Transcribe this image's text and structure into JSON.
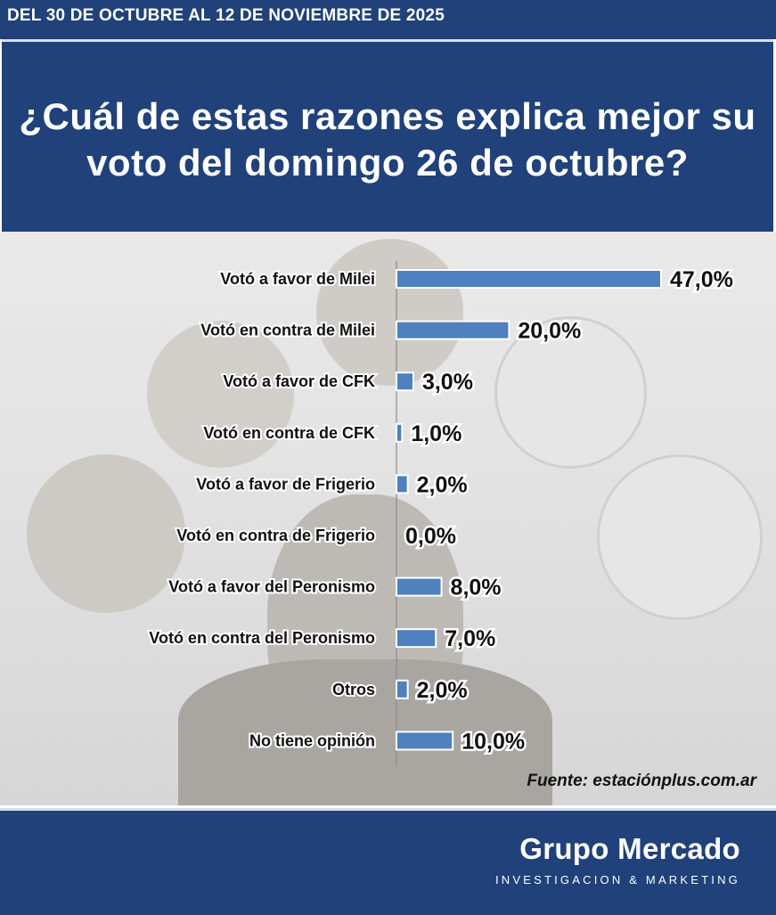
{
  "header": {
    "date_range": "DEL 30 DE OCTUBRE AL 12 DE NOVIEMBRE  DE 2025"
  },
  "title": "¿Cuál de estas razones explica mejor su voto del domingo 26 de octubre?",
  "chart_data": {
    "type": "bar",
    "orientation": "horizontal",
    "categories": [
      "Votó a favor de Milei",
      "Votó en contra de Milei",
      "Votó a favor de CFK",
      "Votó en contra de CFK",
      "Votó a favor de Frigerio",
      "Votó en contra de Frigerio",
      "Votó a favor del Peronismo",
      "Votó en contra del Peronismo",
      "Otros",
      "No tiene opinión"
    ],
    "values": [
      47.0,
      20.0,
      3.0,
      1.0,
      2.0,
      0.0,
      8.0,
      7.0,
      2.0,
      10.0
    ],
    "value_labels": [
      "47,0%",
      "20,0%",
      "3,0%",
      "1,0%",
      "2,0%",
      "0,0%",
      "8,0%",
      "7,0%",
      "2,0%",
      "10,0%"
    ],
    "unit": "%",
    "xlim": [
      0,
      50
    ],
    "bar_color": "#4e81bd",
    "grid": false,
    "legend": "none"
  },
  "source": "Fuente: estaciónplus.com.ar",
  "footer": {
    "brand": "Grupo Mercado",
    "tagline": "INVESTIGACION & MARKETING"
  },
  "colors": {
    "band": "#20417a",
    "bar": "#4e81bd",
    "text": "#111111"
  }
}
